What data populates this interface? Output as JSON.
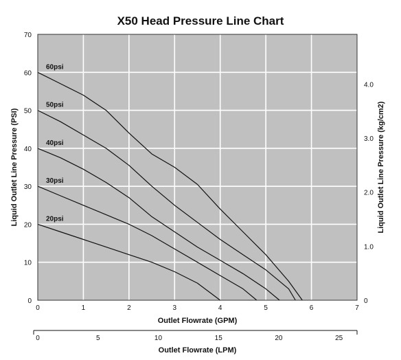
{
  "chart_data": {
    "type": "line",
    "title": "X50 Head Pressure Line Chart",
    "xlabel": "Outlet Flowrate (GPM)",
    "ylabel": "Liquid Outlet Line Pressure (PSI)",
    "y2label": "Liquid Outlet Line Pressure (kg/cm2)",
    "x2label": "Outlet Flowrate (LPM)",
    "xlim": [
      0,
      7
    ],
    "ylim": [
      0,
      70
    ],
    "x2lim": [
      0,
      26.5
    ],
    "y2lim": [
      0,
      4.92
    ],
    "x_ticks": [
      "0",
      "1",
      "2",
      "3",
      "4",
      "5",
      "6",
      "7"
    ],
    "y_ticks": [
      "0",
      "10",
      "20",
      "30",
      "40",
      "50",
      "60",
      "70"
    ],
    "x2_ticks": [
      "0",
      "5",
      "10",
      "15",
      "20",
      "25"
    ],
    "y2_ticks": [
      "0",
      "1.0",
      "2.0",
      "3.0",
      "4.0"
    ],
    "grid": true,
    "plot_background": "#c0c0c0",
    "grid_color": "#ffffff",
    "line_color": "#111111",
    "series": [
      {
        "name": "20psi",
        "x": [
          0,
          0.5,
          1,
          1.5,
          2,
          2.5,
          3,
          3.5,
          4.0
        ],
        "y": [
          20,
          18,
          16,
          14,
          12,
          10,
          7.5,
          4.5,
          0
        ]
      },
      {
        "name": "30psi",
        "x": [
          0,
          0.5,
          1,
          1.5,
          2,
          2.5,
          3,
          3.5,
          4,
          4.5,
          4.8
        ],
        "y": [
          30,
          27.5,
          25,
          22.5,
          20,
          17,
          13.5,
          10,
          6.5,
          3,
          0
        ]
      },
      {
        "name": "40psi",
        "x": [
          0,
          0.5,
          1,
          1.5,
          2,
          2.5,
          3,
          3.5,
          4,
          4.5,
          5,
          5.3
        ],
        "y": [
          40,
          37.5,
          34.5,
          31,
          27,
          22,
          18,
          14,
          10.5,
          7,
          3,
          0
        ]
      },
      {
        "name": "50psi",
        "x": [
          0,
          0.5,
          1,
          1.5,
          2,
          2.5,
          3,
          3.5,
          4,
          4.5,
          5,
          5.5,
          5.65
        ],
        "y": [
          50,
          47,
          43.5,
          40,
          35.5,
          30,
          25,
          20.5,
          16,
          12,
          8,
          3,
          0
        ]
      },
      {
        "name": "60psi",
        "x": [
          0,
          0.5,
          1,
          1.5,
          2,
          2.5,
          3,
          3.5,
          4,
          4.5,
          5,
          5.5,
          5.8
        ],
        "y": [
          60,
          57,
          54,
          50,
          44,
          38.5,
          35,
          30.5,
          24,
          18,
          12,
          5,
          0
        ]
      }
    ]
  }
}
